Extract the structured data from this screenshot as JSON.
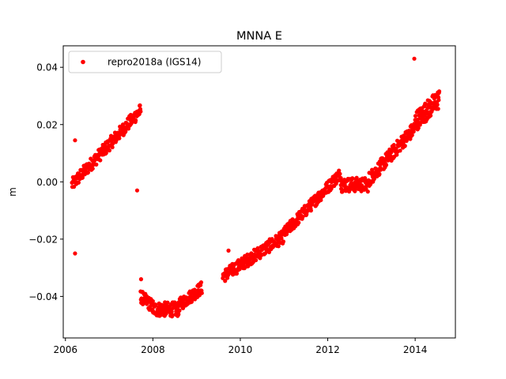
{
  "chart_data": {
    "type": "scatter",
    "title": "MNNA E",
    "xlabel": "",
    "ylabel": "m",
    "xlim": [
      2005.95,
      2014.92
    ],
    "ylim": [
      -0.0545,
      0.0475
    ],
    "x_ticks": [
      2006,
      2008,
      2010,
      2012,
      2014
    ],
    "x_tick_labels": [
      "2006",
      "2008",
      "2010",
      "2012",
      "2014"
    ],
    "y_ticks": [
      -0.04,
      -0.02,
      0.0,
      0.02,
      0.04
    ],
    "y_tick_labels": [
      "−0.04",
      "−0.02",
      "0.00",
      "0.02",
      "0.04"
    ],
    "grid": false,
    "legend_position": "top-left",
    "series": [
      {
        "name": "repro2018a (IGS14)",
        "color": "#ff0000",
        "marker": "circle",
        "segments": [
          {
            "x_start": 2006.15,
            "x_end": 2007.72,
            "y_start": -0.001,
            "y_end": 0.025,
            "spread": 0.0045,
            "count": 210
          },
          {
            "x_start": 2007.72,
            "x_end": 2008.0,
            "y_start": -0.04,
            "y_end": -0.0435,
            "spread": 0.0045,
            "count": 40
          },
          {
            "x_start": 2008.0,
            "x_end": 2008.6,
            "y_start": -0.0445,
            "y_end": -0.0445,
            "spread": 0.005,
            "count": 90
          },
          {
            "x_start": 2008.6,
            "x_end": 2009.12,
            "y_start": -0.043,
            "y_end": -0.037,
            "spread": 0.0045,
            "count": 70
          },
          {
            "x_start": 2009.6,
            "x_end": 2011.0,
            "y_start": -0.033,
            "y_end": -0.019,
            "spread": 0.0045,
            "count": 190
          },
          {
            "x_start": 2011.0,
            "x_end": 2012.3,
            "y_start": -0.018,
            "y_end": 0.003,
            "spread": 0.0042,
            "count": 180
          },
          {
            "x_start": 2012.3,
            "x_end": 2012.95,
            "y_start": -0.001,
            "y_end": -0.001,
            "spread": 0.005,
            "count": 80
          },
          {
            "x_start": 2012.95,
            "x_end": 2014.0,
            "y_start": 0.001,
            "y_end": 0.019,
            "spread": 0.005,
            "count": 150
          },
          {
            "x_start": 2014.0,
            "x_end": 2014.55,
            "y_start": 0.021,
            "y_end": 0.029,
            "spread": 0.007,
            "count": 90
          }
        ],
        "outliers": [
          {
            "x": 2006.22,
            "y": 0.0145
          },
          {
            "x": 2006.22,
            "y": -0.025
          },
          {
            "x": 2007.64,
            "y": -0.003
          },
          {
            "x": 2007.73,
            "y": -0.034
          },
          {
            "x": 2013.98,
            "y": 0.043
          },
          {
            "x": 2009.73,
            "y": -0.024
          }
        ]
      }
    ]
  }
}
